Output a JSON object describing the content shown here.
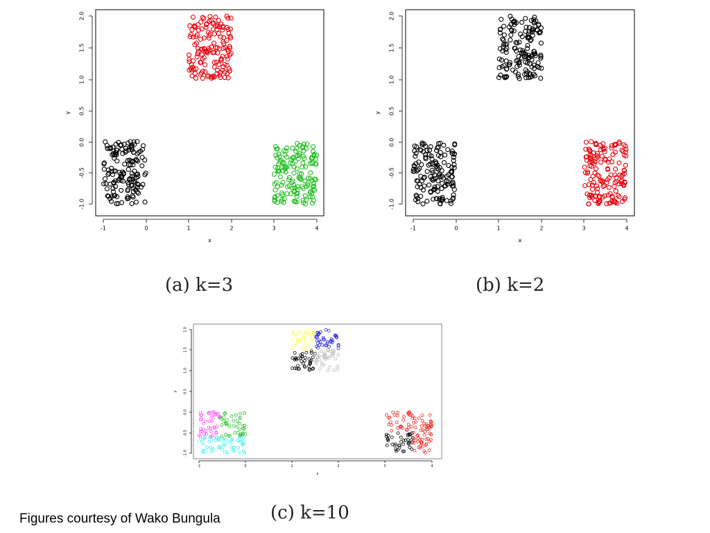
{
  "chart_data": [
    {
      "type": "scatter",
      "panel": "a",
      "caption": "(a) k=3",
      "xlabel": "x",
      "ylabel": "y",
      "xlim": [
        -1.2,
        4.2
      ],
      "ylim": [
        -1.1,
        2.1
      ],
      "xticks": [
        "-1",
        "0",
        "1",
        "2",
        "3",
        "4"
      ],
      "yticks": [
        "-1.0",
        "-0.5",
        "0.0",
        "0.5",
        "1.0",
        "1.5",
        "2.0"
      ],
      "grid": false,
      "legend": "none",
      "marker": "open-circle",
      "series": [
        {
          "color": "#000000",
          "x_range": [
            -1,
            0
          ],
          "y_range": [
            -1,
            0
          ],
          "n": 150
        },
        {
          "color": "#e8000b",
          "x_range": [
            1,
            2
          ],
          "y_range": [
            1,
            2
          ],
          "n": 150
        },
        {
          "color": "#1fbe1f",
          "x_range": [
            3,
            4
          ],
          "y_range": [
            -1,
            0
          ],
          "n": 150
        }
      ]
    },
    {
      "type": "scatter",
      "panel": "b",
      "caption": "(b) k=2",
      "xlabel": "x",
      "ylabel": "y",
      "xlim": [
        -1.2,
        4.2
      ],
      "ylim": [
        -1.1,
        2.1
      ],
      "xticks": [
        "-1",
        "0",
        "1",
        "2",
        "3",
        "4"
      ],
      "yticks": [
        "-1.0",
        "-0.5",
        "0.0",
        "0.5",
        "1.0",
        "1.5",
        "2.0"
      ],
      "grid": false,
      "legend": "none",
      "marker": "open-circle",
      "series": [
        {
          "color": "#000000",
          "x_range": [
            -1,
            0
          ],
          "y_range": [
            -1,
            0
          ],
          "n": 150
        },
        {
          "color": "#000000",
          "x_range": [
            1,
            2
          ],
          "y_range": [
            1,
            2
          ],
          "n": 150
        },
        {
          "color": "#e8000b",
          "x_range": [
            3,
            4
          ],
          "y_range": [
            -1,
            0
          ],
          "n": 150
        }
      ]
    },
    {
      "type": "scatter",
      "panel": "c",
      "caption": "(c) k=10",
      "xlabel": "x",
      "ylabel": "y",
      "xlim": [
        -1.2,
        4.2
      ],
      "ylim": [
        -1.1,
        2.1
      ],
      "xticks": [
        "-1",
        "0",
        "1",
        "2",
        "3",
        "4"
      ],
      "yticks": [
        "-1.0",
        "-0.5",
        "0.0",
        "0.5",
        "1.0",
        "1.5",
        "2.0"
      ],
      "grid": false,
      "legend": "none",
      "marker": "open-circle",
      "series": [
        {
          "color": "#ffff66",
          "x_range": [
            1,
            1.5
          ],
          "y_range": [
            1.5,
            2
          ],
          "n": 40
        },
        {
          "color": "#2222dd",
          "x_range": [
            1.5,
            2
          ],
          "y_range": [
            1.5,
            2
          ],
          "n": 40
        },
        {
          "color": "#000000",
          "x_range": [
            1,
            1.5
          ],
          "y_range": [
            1,
            1.5
          ],
          "n": 40
        },
        {
          "color": "#bbbbbb",
          "x_range": [
            1.5,
            2
          ],
          "y_range": [
            1,
            1.5
          ],
          "n": 40
        },
        {
          "color": "#ff44ff",
          "x_range": [
            -1,
            -0.55
          ],
          "y_range": [
            -0.6,
            0
          ],
          "n": 40
        },
        {
          "color": "#22bb22",
          "x_range": [
            -0.55,
            0
          ],
          "y_range": [
            -0.6,
            0
          ],
          "n": 40
        },
        {
          "color": "#33eeee",
          "x_range": [
            -1,
            0
          ],
          "y_range": [
            -1,
            -0.6
          ],
          "n": 50
        },
        {
          "color": "#ee2222",
          "x_range": [
            3,
            4
          ],
          "y_range": [
            -0.5,
            0
          ],
          "n": 60
        },
        {
          "color": "#000000",
          "x_range": [
            3,
            3.6
          ],
          "y_range": [
            -1,
            -0.5
          ],
          "n": 40
        },
        {
          "color": "#ee2222",
          "x_range": [
            3.6,
            4
          ],
          "y_range": [
            -1,
            -0.5
          ],
          "n": 30
        }
      ]
    }
  ],
  "credit": "Figures courtesy of Wako Bungula"
}
